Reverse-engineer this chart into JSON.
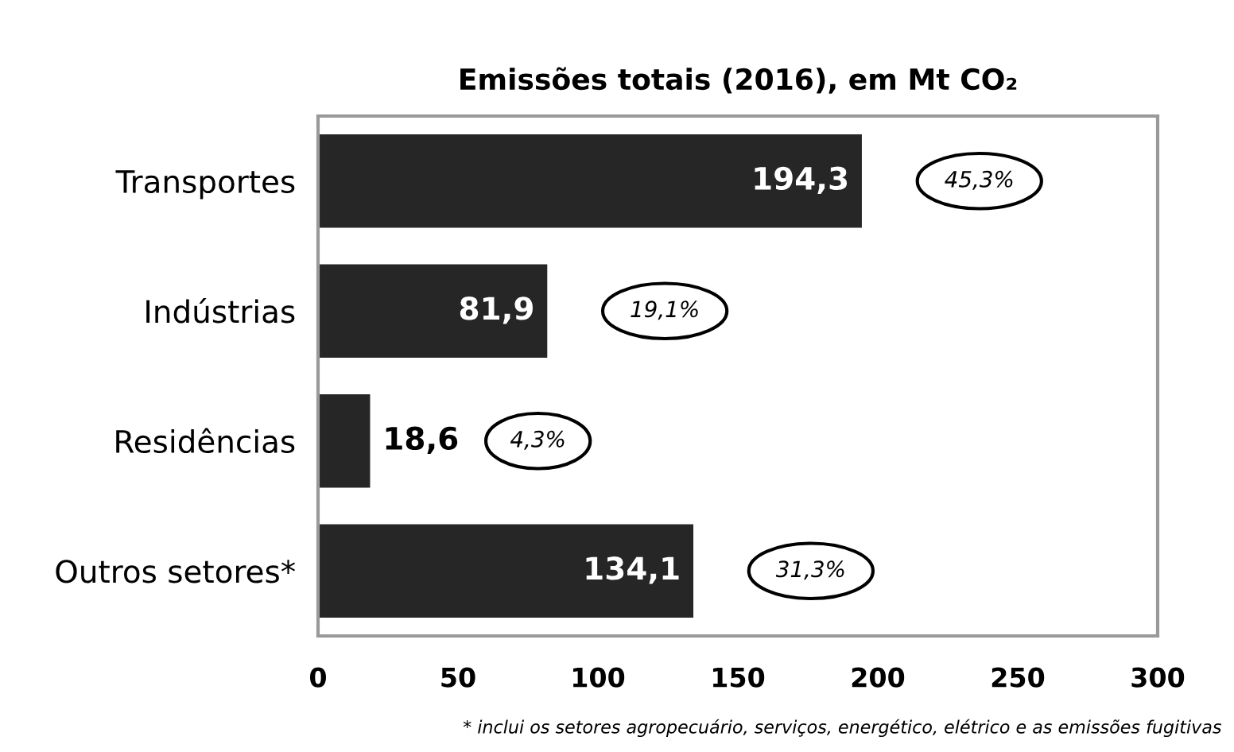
{
  "chart_data": {
    "type": "bar",
    "orientation": "horizontal",
    "title": "Emissões totais (2016), em Mt CO₂",
    "categories": [
      "Transportes",
      "Indústrias",
      "Residências",
      "Outros setores*"
    ],
    "values": [
      194.3,
      81.9,
      18.6,
      134.1
    ],
    "value_labels": [
      "194,3",
      "81,9",
      "18,6",
      "134,1"
    ],
    "color": "#262626",
    "xlim": [
      0,
      300
    ],
    "xticks": [
      0,
      50,
      100,
      150,
      200,
      250,
      300
    ],
    "grid": false,
    "annotations": [
      "45,3%",
      "19,1%",
      "4,3%",
      "31,3%",
      "* inclui os setores agropecuário, serviços, energético, elétrico e as emissões fugitivas"
    ]
  }
}
